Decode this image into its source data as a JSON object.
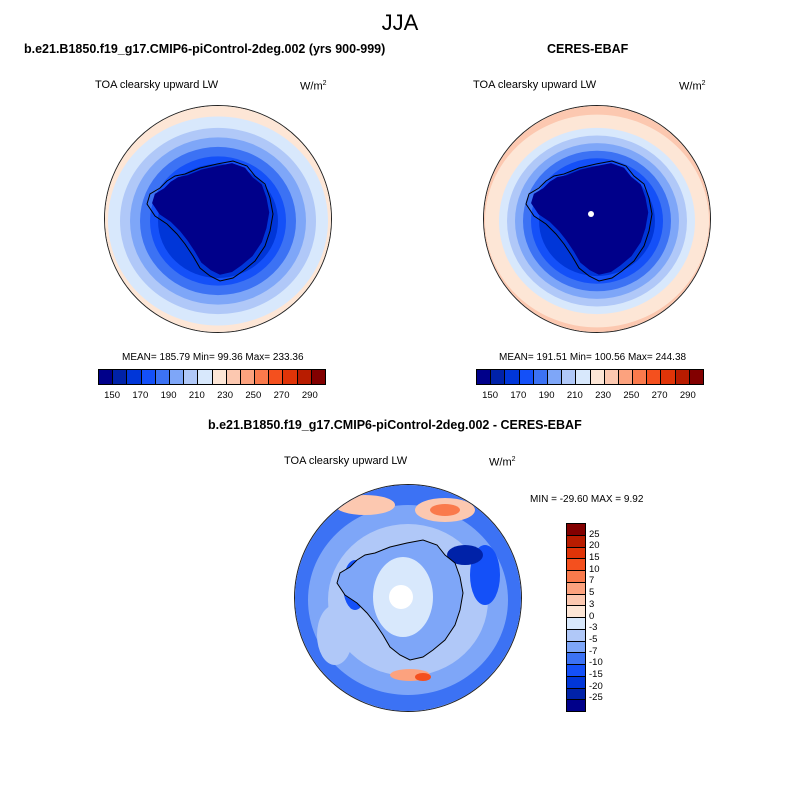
{
  "figure_title": "JJA",
  "panels": [
    {
      "title": "b.e21.B1850.f19_g17.CMIP6-piControl-2deg.002 (yrs 900-999)",
      "variable": "TOA clearsky upward LW",
      "units": "W/m",
      "units_exp": "2",
      "stats": "MEAN= 185.79  Min=  99.36  Max= 233.36",
      "mean": 185.79,
      "min": 99.36,
      "max": 233.36
    },
    {
      "title": "CERES-EBAF",
      "variable": "TOA clearsky upward LW",
      "units": "W/m",
      "units_exp": "2",
      "stats": "MEAN= 191.51  Min= 100.56  Max= 244.38",
      "mean": 191.51,
      "min": 100.56,
      "max": 244.38
    },
    {
      "title": "b.e21.B1850.f19_g17.CMIP6-piControl-2deg.002 - CERES-EBAF",
      "variable": "TOA clearsky upward LW",
      "units": "W/m",
      "units_exp": "2",
      "stats": "MIN = -29.60 MAX =   9.92",
      "min": -29.6,
      "max": 9.92
    }
  ],
  "colorbar_abs": {
    "labels": [
      "150",
      "170",
      "190",
      "210",
      "230",
      "250",
      "270",
      "290"
    ],
    "colors": [
      "#00008a",
      "#0022a8",
      "#0036d8",
      "#1450f8",
      "#3c72f4",
      "#7ea6f8",
      "#b0c8f8",
      "#d8e8fc",
      "#fde6d6",
      "#fcc8b0",
      "#fca27e",
      "#fa7a4c",
      "#f4501e",
      "#e03408",
      "#b81c00",
      "#820000"
    ]
  },
  "colorbar_diff": {
    "labels": [
      "25",
      "20",
      "15",
      "10",
      "7",
      "5",
      "3",
      "0",
      "-3",
      "-5",
      "-7",
      "-10",
      "-15",
      "-20",
      "-25"
    ],
    "colors": [
      "#820000",
      "#b81c00",
      "#e03408",
      "#f4501e",
      "#fa7a4c",
      "#fca27e",
      "#fcc8b0",
      "#fde6d6",
      "#d8e8fc",
      "#b0c8f8",
      "#7ea6f8",
      "#3c72f4",
      "#1450f8",
      "#0036d8",
      "#0022a8",
      "#00008a"
    ]
  }
}
